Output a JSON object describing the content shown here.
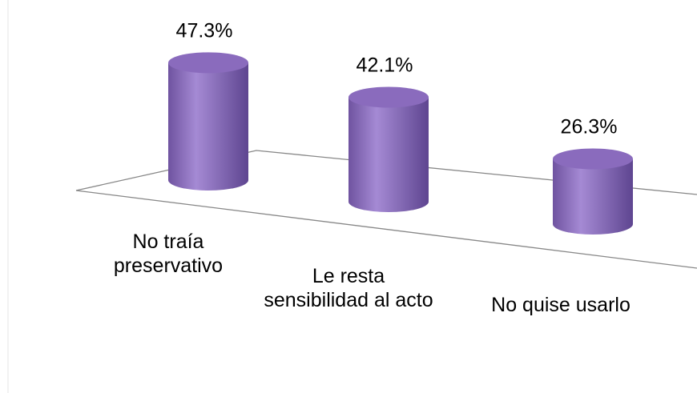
{
  "chart_data": {
    "type": "bar3d",
    "categories": [
      "No traía preservativo",
      "Le resta sensibilidad al acto",
      "No quise usarlo"
    ],
    "values": [
      47.3,
      42.1,
      26.3
    ],
    "value_labels": [
      "47.3%",
      "42.1%",
      "26.3%"
    ],
    "color": "#8a6bbd"
  }
}
